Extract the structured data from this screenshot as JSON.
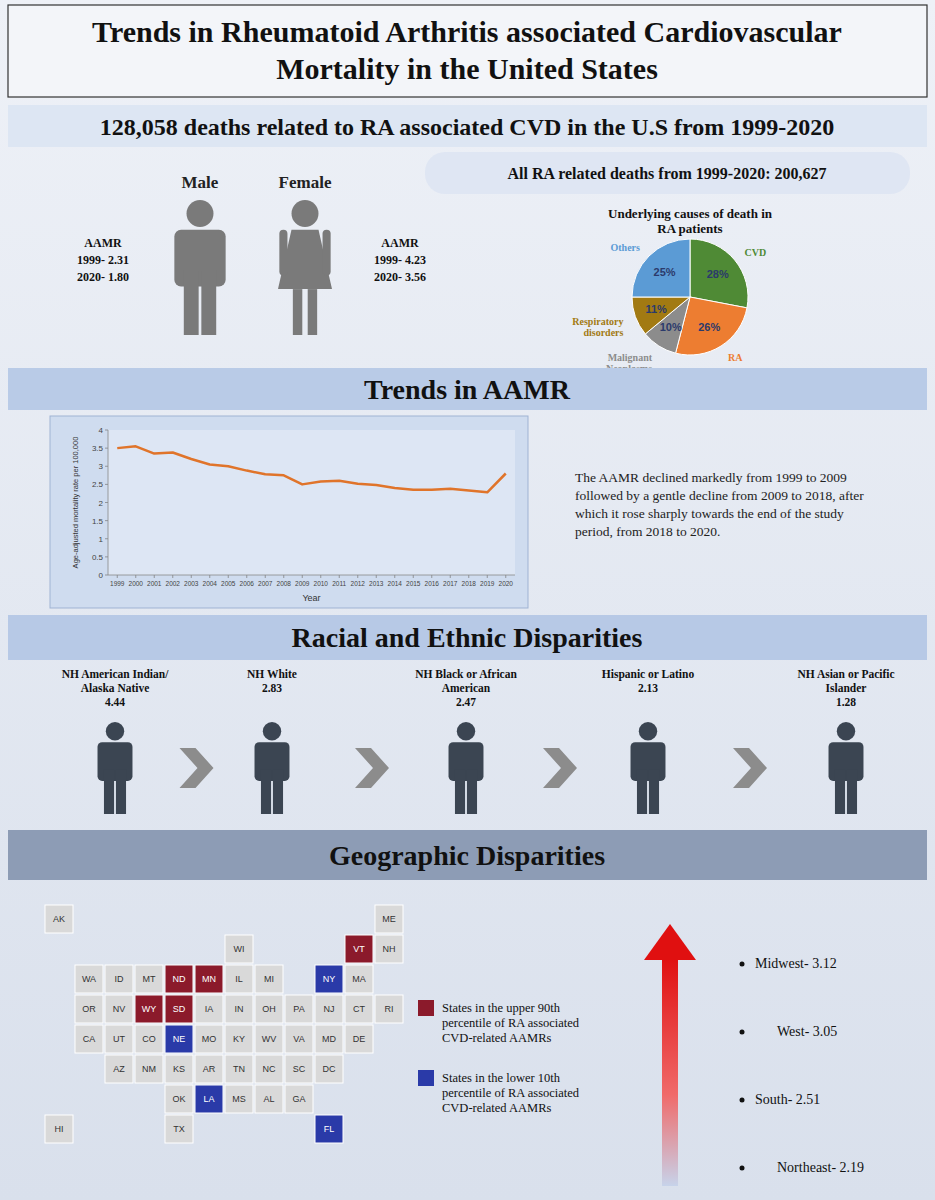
{
  "title": "Trends in Rheumatoid Arthritis associated Cardiovascular Mortality in the United States",
  "headline": "128,058 deaths related to RA associated CVD in the U.S from 1999-2020",
  "sex": [
    {
      "label": "Male",
      "aamr": [
        "AAMR",
        "1999- 2.31",
        "2020- 1.80"
      ],
      "color": "#7a7a7a"
    },
    {
      "label": "Female",
      "aamr": [
        "AAMR",
        "1999- 4.23",
        "2020- 3.56"
      ],
      "color": "#7a7a7a"
    }
  ],
  "all_deaths": "All RA related deaths from 1999-2020: 200,627",
  "chart_data": [
    {
      "type": "pie",
      "title": "Underlying causes of death in RA patients",
      "categories": [
        "CVD",
        "RA",
        "Malignant Neoplasms",
        "Respiratory disorders",
        "Others"
      ],
      "values": [
        28,
        26,
        10,
        11,
        25
      ],
      "value_labels": [
        "28%",
        "26%",
        "10%",
        "11%",
        "25%"
      ],
      "colors": [
        "#4f8a35",
        "#ed7d31",
        "#8c8c8c",
        "#a27a12",
        "#5b9bd5"
      ],
      "data_labels": true
    },
    {
      "type": "line",
      "x_label": "Year",
      "y_label": "Age-adjusted mortality rate per 100,000",
      "x": [
        1999,
        2000,
        2001,
        2002,
        2003,
        2004,
        2005,
        2006,
        2007,
        2008,
        2009,
        2010,
        2011,
        2012,
        2013,
        2014,
        2015,
        2016,
        2017,
        2018,
        2019,
        2020
      ],
      "values": [
        3.5,
        3.55,
        3.35,
        3.38,
        3.2,
        3.05,
        3.0,
        2.88,
        2.78,
        2.75,
        2.5,
        2.58,
        2.6,
        2.52,
        2.48,
        2.4,
        2.35,
        2.35,
        2.38,
        2.33,
        2.28,
        2.8
      ],
      "color": "#e0742a",
      "xlim": [
        1998.5,
        2020.5
      ],
      "xticks": [
        1999,
        2000,
        2001,
        2002,
        2003,
        2004,
        2005,
        2006,
        2007,
        2008,
        2009,
        2010,
        2011,
        2012,
        2013,
        2014,
        2015,
        2016,
        2017,
        2018,
        2019,
        2020
      ],
      "ylim": [
        0,
        4
      ],
      "yticks": [
        0,
        0.5,
        1,
        1.5,
        2,
        2.5,
        3,
        3.5,
        4
      ],
      "grid": false
    }
  ],
  "trends": {
    "title": "Trends in AAMR",
    "text": "The AAMR declined markedly from 1999 to 2009 followed by a gentle decline from 2009 to 2018, after which it rose sharply towards the end of the study period, from 2018 to 2020."
  },
  "race": {
    "title": "Racial and Ethnic Disparities",
    "color": "#3b4552",
    "groups": [
      {
        "name": "NH American Indian/ Alaska Native",
        "value": 4.44
      },
      {
        "name": "NH White",
        "value": 2.83
      },
      {
        "name": "NH Black or African American",
        "value": 2.47
      },
      {
        "name": "Hispanic or Latino",
        "value": 2.13
      },
      {
        "name": "NH Asian or Pacific Islander",
        "value": 1.28
      }
    ]
  },
  "geography": {
    "title": "Geographic Disparities",
    "default_color": "#d9d9d9",
    "map_rows": [
      [
        "AK",
        null,
        null,
        null,
        null,
        null,
        null,
        null,
        null,
        null,
        null,
        "ME"
      ],
      [
        null,
        null,
        null,
        null,
        null,
        null,
        "WI",
        null,
        null,
        null,
        "VT",
        "NH"
      ],
      [
        null,
        "WA",
        "ID",
        "MT",
        "ND",
        "MN",
        "IL",
        "MI",
        null,
        "NY",
        "MA",
        null
      ],
      [
        null,
        "OR",
        "NV",
        "WY",
        "SD",
        "IA",
        "IN",
        "OH",
        "PA",
        "NJ",
        "CT",
        "RI"
      ],
      [
        null,
        "CA",
        "UT",
        "CO",
        "NE",
        "MO",
        "KY",
        "WV",
        "VA",
        "MD",
        "DE",
        null
      ],
      [
        null,
        null,
        "AZ",
        "NM",
        "KS",
        "AR",
        "TN",
        "NC",
        "SC",
        "DC",
        null,
        null
      ],
      [
        null,
        null,
        null,
        null,
        "OK",
        "LA",
        "MS",
        "AL",
        "GA",
        null,
        null,
        null
      ],
      [
        "HI",
        null,
        null,
        null,
        "TX",
        null,
        null,
        null,
        null,
        "FL",
        null,
        null
      ]
    ],
    "legend": [
      {
        "label": "States in the upper 90th percentile of RA associated CVD-related AAMRs",
        "color": "#8b1a2b",
        "states": [
          "WY",
          "ND",
          "SD",
          "MN",
          "VT"
        ]
      },
      {
        "label": "States in the lower 10th percentile of RA associated CVD-related AAMRs",
        "color": "#2a3aa8",
        "states": [
          "NE",
          "NY",
          "LA",
          "FL"
        ]
      }
    ],
    "regions": [
      "Midwest- 3.12",
      "West- 3.05",
      "South- 2.51",
      "Northeast- 2.19"
    ]
  }
}
